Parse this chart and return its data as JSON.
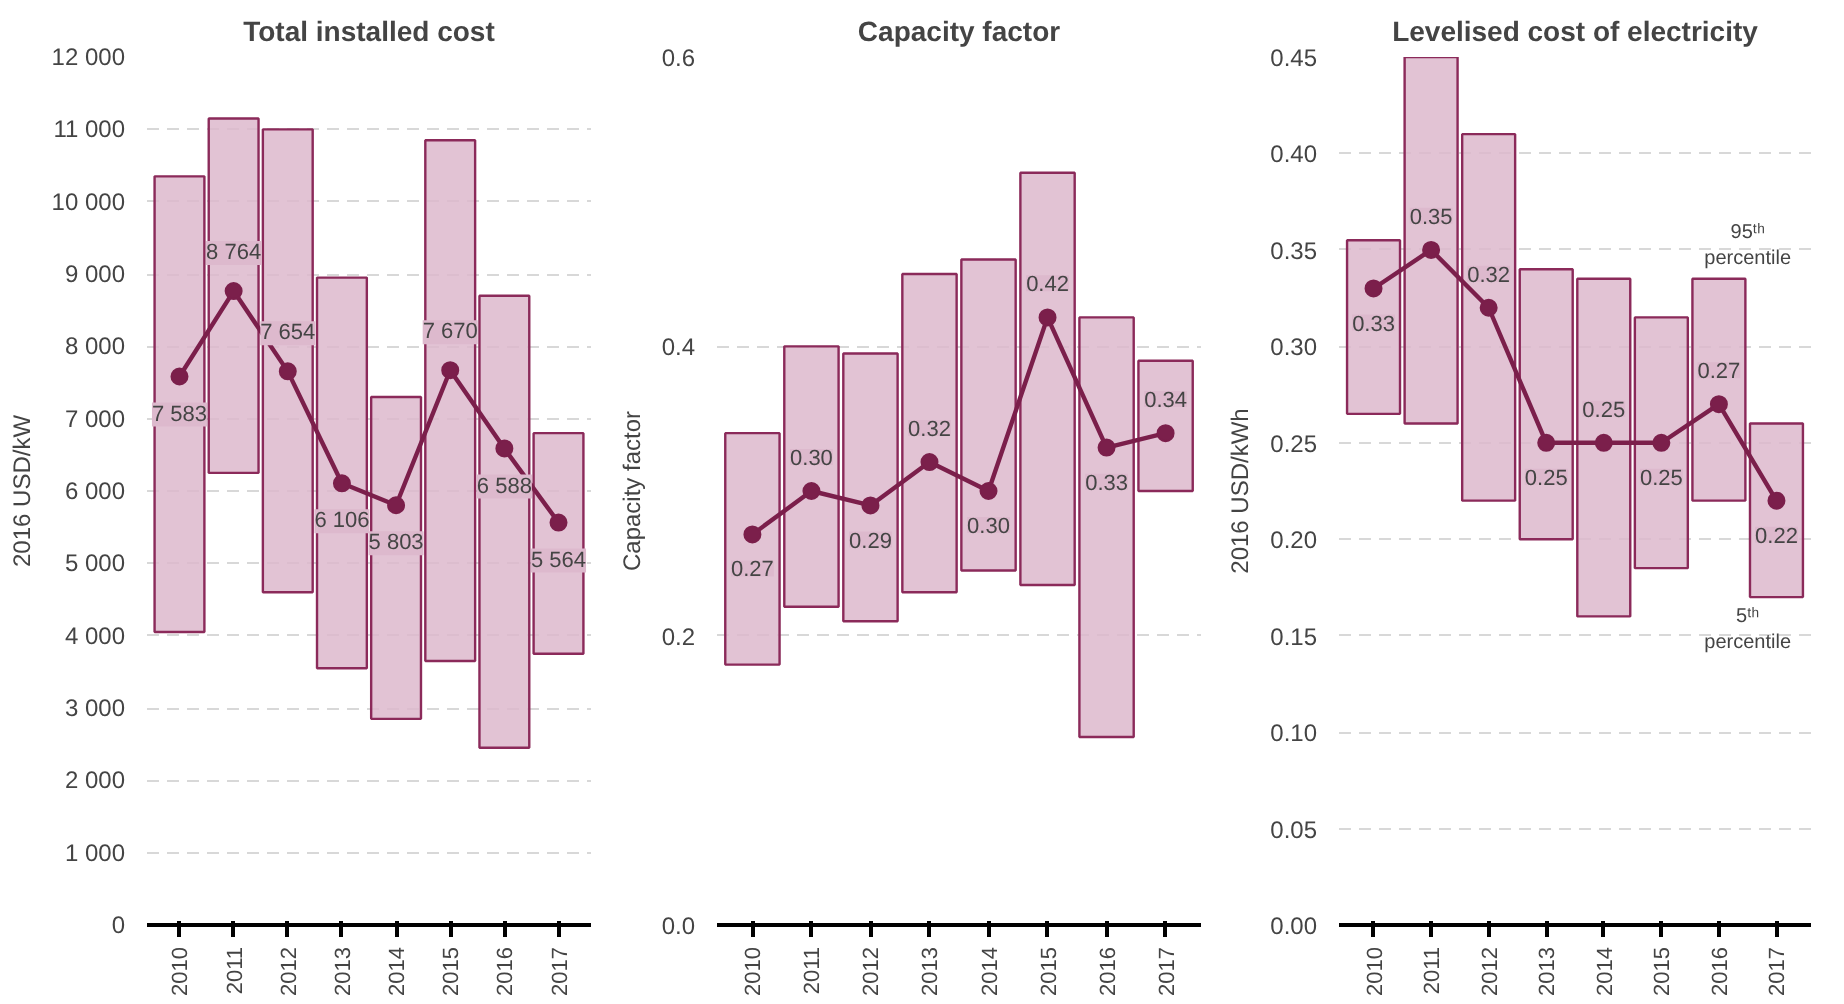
{
  "chart_data": [
    {
      "type": "bar",
      "title": "Total installed cost",
      "ylabel": "2016 USD/kW",
      "categories": [
        "2010",
        "2011",
        "2012",
        "2013",
        "2014",
        "2015",
        "2016",
        "2017"
      ],
      "ylim": [
        0,
        12000
      ],
      "yticks": [
        {
          "value": 0,
          "label": "0"
        },
        {
          "value": 1000,
          "label": "1 000"
        },
        {
          "value": 2000,
          "label": "2 000"
        },
        {
          "value": 3000,
          "label": "3 000"
        },
        {
          "value": 4000,
          "label": "4 000"
        },
        {
          "value": 5000,
          "label": "5 000"
        },
        {
          "value": 6000,
          "label": "6 000"
        },
        {
          "value": 7000,
          "label": "7 000"
        },
        {
          "value": 8000,
          "label": "8 000"
        },
        {
          "value": 9000,
          "label": "9 000"
        },
        {
          "value": 10000,
          "label": "10 000"
        },
        {
          "value": 11000,
          "label": "11 000"
        },
        {
          "value": 12000,
          "label": "12 000"
        }
      ],
      "grid": "y",
      "series": [
        {
          "color": "#ddb9cd",
          "base": [
            4050,
            6250,
            4600,
            3550,
            2850,
            3650,
            2450,
            3750
          ],
          "values": [
            6300,
            4900,
            6400,
            5400,
            4450,
            7200,
            6250,
            3050
          ]
        },
        {
          "type": "line",
          "color": "#7b1f4b",
          "marker": "circle",
          "line_style": "solid",
          "values": [
            7583,
            8764,
            7654,
            6106,
            5803,
            7670,
            6588,
            5564
          ],
          "value_labels": [
            "7 583",
            "8 764",
            "7 654",
            "6 106",
            "5 803",
            "7 670",
            "6 588",
            "5 564"
          ]
        }
      ]
    },
    {
      "type": "bar",
      "title": "Capacity factor",
      "ylabel": "Capacity factor",
      "categories": [
        "2010",
        "2011",
        "2012",
        "2013",
        "2014",
        "2015",
        "2016",
        "2017"
      ],
      "ylim": [
        0,
        0.6
      ],
      "yticks": [
        {
          "value": 0,
          "label": "0.0"
        },
        {
          "value": 0.2,
          "label": "0.2"
        },
        {
          "value": 0.4,
          "label": "0.4"
        },
        {
          "value": 0.6,
          "label": "0.6"
        }
      ],
      "grid": "y",
      "series": [
        {
          "color": "#ddb9cd",
          "base": [
            0.18,
            0.22,
            0.21,
            0.23,
            0.245,
            0.235,
            0.13,
            0.3
          ],
          "values": [
            0.16,
            0.18,
            0.185,
            0.22,
            0.215,
            0.285,
            0.29,
            0.09
          ]
        },
        {
          "type": "line",
          "color": "#7b1f4b",
          "marker": "circle",
          "line_style": "solid",
          "values": [
            0.27,
            0.3,
            0.29,
            0.32,
            0.3,
            0.42,
            0.33,
            0.34
          ],
          "value_labels": [
            "0.27",
            "0.30",
            "0.29",
            "0.32",
            "0.30",
            "0.42",
            "0.33",
            "0.34"
          ]
        }
      ]
    },
    {
      "type": "bar",
      "title": "Levelised cost of electricity",
      "ylabel": "2016 USD/kWh",
      "categories": [
        "2010",
        "2011",
        "2012",
        "2013",
        "2014",
        "2015",
        "2016",
        "2017"
      ],
      "ylim": [
        0,
        0.45
      ],
      "yticks": [
        {
          "value": 0,
          "label": "0.00"
        },
        {
          "value": 0.05,
          "label": "0.05"
        },
        {
          "value": 0.1,
          "label": "0.10"
        },
        {
          "value": 0.15,
          "label": "0.15"
        },
        {
          "value": 0.2,
          "label": "0.20"
        },
        {
          "value": 0.25,
          "label": "0.25"
        },
        {
          "value": 0.3,
          "label": "0.30"
        },
        {
          "value": 0.35,
          "label": "0.35"
        },
        {
          "value": 0.4,
          "label": "0.40"
        },
        {
          "value": 0.45,
          "label": "0.45"
        }
      ],
      "grid": "y",
      "annotations": [
        {
          "text": "95ᵗʰ percentile",
          "x": "2016",
          "y": 0.335
        },
        {
          "text": "5ᵗʰ percentile",
          "x": "2017",
          "y": 0.17
        }
      ],
      "series": [
        {
          "color": "#ddb9cd",
          "base": [
            0.265,
            0.26,
            0.22,
            0.2,
            0.16,
            0.185,
            0.22,
            0.17
          ],
          "values": [
            0.09,
            0.19,
            0.19,
            0.14,
            0.175,
            0.13,
            0.115,
            0.09
          ]
        },
        {
          "type": "line",
          "color": "#7b1f4b",
          "marker": "circle",
          "line_style": "solid",
          "values": [
            0.33,
            0.35,
            0.32,
            0.25,
            0.25,
            0.25,
            0.27,
            0.22
          ],
          "value_labels": [
            "0.33",
            "0.35",
            "0.32",
            "0.25",
            "0.25",
            "0.25",
            "0.27",
            "0.22"
          ]
        }
      ]
    }
  ]
}
